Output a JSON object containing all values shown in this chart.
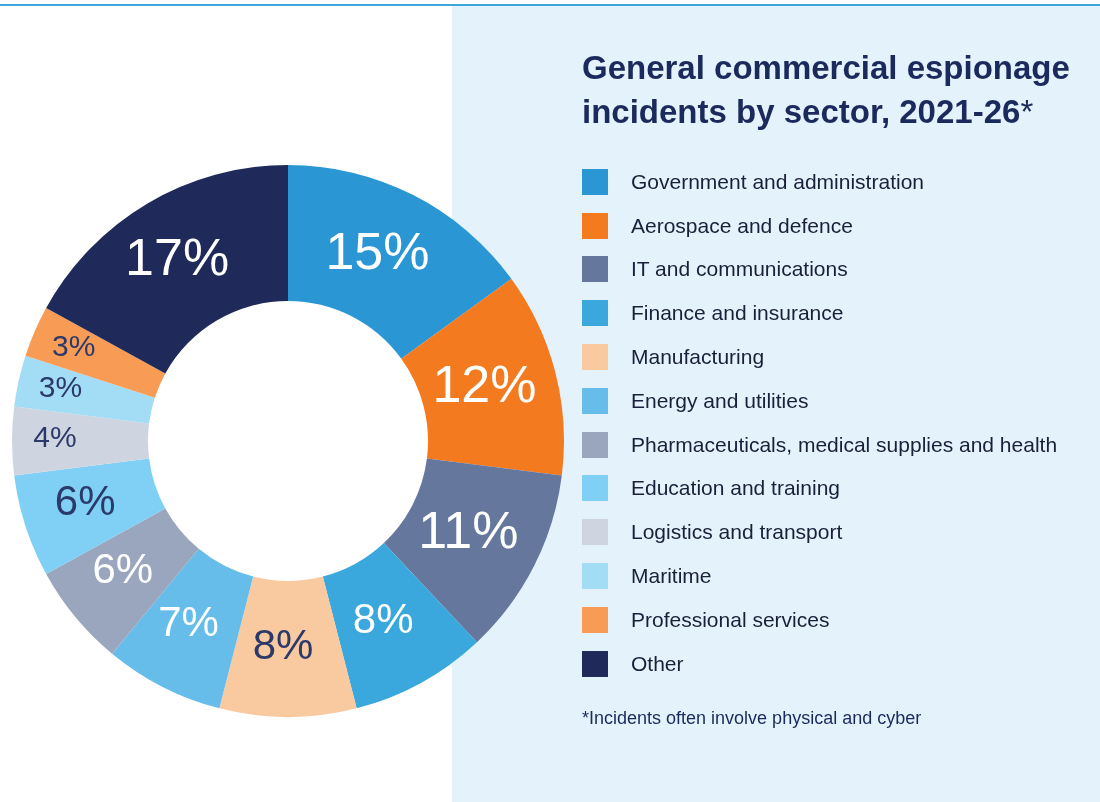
{
  "chart_data": {
    "type": "donut",
    "title": "General commercial espionage incidents by sector, 2021-26*",
    "categories": [
      "Government and administration",
      "Aerospace and defence",
      "IT and communications",
      "Finance and insurance",
      "Manufacturing",
      "Energy and utilities",
      "Pharmaceuticals, medical supplies and health",
      "Education and training",
      "Logistics and transport",
      "Maritime",
      "Professional services",
      "Other"
    ],
    "values": [
      15,
      12,
      11,
      8,
      8,
      7,
      6,
      6,
      4,
      3,
      3,
      17
    ],
    "colors": [
      "#2b96d4",
      "#f47a20",
      "#66779e",
      "#3aa8dd",
      "#f9c9a0",
      "#66bdea",
      "#9aa6be",
      "#7fd0f4",
      "#cfd5e0",
      "#a3dcf5",
      "#f89c55",
      "#1f2a5a"
    ],
    "value_labels": [
      "15%",
      "12%",
      "11%",
      "8%",
      "8%",
      "7%",
      "6%",
      "6%",
      "4%",
      "3%",
      "3%",
      "17%"
    ],
    "legend": "right",
    "annotations": [
      "*Incidents often involve physical and cyber"
    ]
  }
}
